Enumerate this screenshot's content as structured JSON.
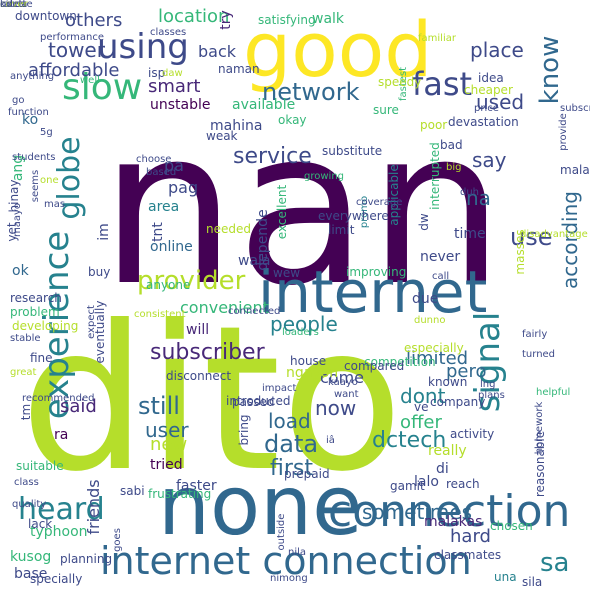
{
  "colors": {
    "background": "#ffffff",
    "palette": [
      "#440154",
      "#482878",
      "#3e4a89",
      "#31688e",
      "#26828e",
      "#1f9e89",
      "#35b779",
      "#6ece58",
      "#b5de2b",
      "#fde725"
    ]
  },
  "words": [
    {
      "text": "nan",
      "color": "#440154"
    },
    {
      "text": "dito",
      "color": "#b5de2b"
    },
    {
      "text": "good",
      "color": "#fde725"
    },
    {
      "text": "internet",
      "color": "#31688e"
    },
    {
      "text": "none",
      "color": "#31688e"
    },
    {
      "text": "internet connection",
      "color": "#31688e"
    },
    {
      "text": "connection",
      "color": "#31688e"
    },
    {
      "text": "using",
      "color": "#3e4a89"
    },
    {
      "text": "fast",
      "color": "#3e4a89"
    },
    {
      "text": "slow",
      "color": "#35b779"
    },
    {
      "text": "network",
      "color": "#31688e"
    },
    {
      "text": "experience",
      "color": "#26828e"
    },
    {
      "text": "provider",
      "color": "#b5de2b"
    },
    {
      "text": "signal",
      "color": "#26828e"
    },
    {
      "text": "subscriber",
      "color": "#482878"
    },
    {
      "text": "service",
      "color": "#3e4a89"
    },
    {
      "text": "globe",
      "color": "#26828e"
    },
    {
      "text": "heard",
      "color": "#26828e"
    },
    {
      "text": "sa",
      "color": "#26828e"
    },
    {
      "text": "use",
      "color": "#3e4a89"
    },
    {
      "text": "used",
      "color": "#3e4a89"
    },
    {
      "text": "know",
      "color": "#31688e"
    },
    {
      "text": "place",
      "color": "#3e4a89"
    },
    {
      "text": "tower",
      "color": "#3e4a89"
    },
    {
      "text": "others",
      "color": "#3e4a89"
    },
    {
      "text": "location",
      "color": "#35b779"
    },
    {
      "text": "affordable",
      "color": "#3e4a89"
    },
    {
      "text": "smart",
      "color": "#482878"
    },
    {
      "text": "now",
      "color": "#3e4a89"
    },
    {
      "text": "still",
      "color": "#31688e"
    },
    {
      "text": "data",
      "color": "#31688e"
    },
    {
      "text": "first",
      "color": "#31688e"
    },
    {
      "text": "dctech",
      "color": "#26828e"
    },
    {
      "text": "sometimes",
      "color": "#31688e"
    },
    {
      "text": "say",
      "color": "#3e4a89"
    },
    {
      "text": "na",
      "color": "#31688e"
    },
    {
      "text": "according",
      "color": "#31688e"
    },
    {
      "text": "people",
      "color": "#26828e"
    },
    {
      "text": "limited",
      "color": "#31688e"
    },
    {
      "text": "dont",
      "color": "#26828e"
    },
    {
      "text": "offer",
      "color": "#35b779"
    },
    {
      "text": "user",
      "color": "#31688e"
    },
    {
      "text": "new",
      "color": "#b5de2b"
    },
    {
      "text": "load",
      "color": "#31688e"
    },
    {
      "text": "said",
      "color": "#482878"
    },
    {
      "text": "hard",
      "color": "#3e4a89"
    },
    {
      "text": "pag",
      "color": "#3e4a89"
    },
    {
      "text": "back",
      "color": "#3e4a89"
    },
    {
      "text": "try",
      "color": "#482878"
    },
    {
      "text": "pa",
      "color": "#3e4a89"
    },
    {
      "text": "area",
      "color": "#26828e"
    },
    {
      "text": "depende",
      "color": "#3e4a89"
    },
    {
      "text": "online",
      "color": "#31688e"
    },
    {
      "text": "wala",
      "color": "#3e4a89"
    },
    {
      "text": "ko",
      "color": "#31688e"
    },
    {
      "text": "unstable",
      "color": "#440154"
    },
    {
      "text": "available",
      "color": "#35b779"
    },
    {
      "text": "ang",
      "color": "#35b779"
    },
    {
      "text": "yet",
      "color": "#3e4a89"
    },
    {
      "text": "hinay",
      "color": "#3e4a89"
    },
    {
      "text": "ok",
      "color": "#31688e"
    },
    {
      "text": "due",
      "color": "#3e4a89"
    },
    {
      "text": "convenient",
      "color": "#35b779"
    },
    {
      "text": "will",
      "color": "#482878"
    },
    {
      "text": "come",
      "color": "#3e4a89"
    },
    {
      "text": "pero",
      "color": "#31688e"
    },
    {
      "text": "tried",
      "color": "#440154"
    },
    {
      "text": "ra",
      "color": "#440154"
    },
    {
      "text": "really",
      "color": "#b5de2b"
    },
    {
      "text": "di",
      "color": "#3e4a89"
    },
    {
      "text": "lalo",
      "color": "#3e4a89"
    },
    {
      "text": "faster",
      "color": "#3e4a89"
    },
    {
      "text": "friends",
      "color": "#3e4a89"
    },
    {
      "text": "typhoon",
      "color": "#35b779"
    },
    {
      "text": "kusog",
      "color": "#35b779"
    },
    {
      "text": "malakas",
      "color": "#482878"
    },
    {
      "text": "base",
      "color": "#3e4a89"
    },
    {
      "text": "una",
      "color": "#26828e"
    },
    {
      "text": "never",
      "color": "#3e4a89"
    },
    {
      "text": "time",
      "color": "#3e4a89"
    },
    {
      "text": "bad",
      "color": "#3e4a89"
    },
    {
      "text": "malapit",
      "color": "#3e4a89"
    },
    {
      "text": "tnt",
      "color": "#3e4a89"
    },
    {
      "text": "im",
      "color": "#3e4a89"
    },
    {
      "text": "dw",
      "color": "#3e4a89"
    },
    {
      "text": "promo",
      "color": "#26828e"
    },
    {
      "text": "applicable",
      "color": "#26828e"
    },
    {
      "text": "mahina",
      "color": "#3e4a89"
    },
    {
      "text": "walk",
      "color": "#35b779"
    },
    {
      "text": "satisfying",
      "color": "#35b779"
    },
    {
      "text": "idea",
      "color": "#3e4a89"
    },
    {
      "text": "familiar",
      "color": "#b5de2b"
    },
    {
      "text": "cheaper",
      "color": "#b5de2b"
    },
    {
      "text": "price",
      "color": "#3e4a89"
    },
    {
      "text": "devastation",
      "color": "#3e4a89"
    },
    {
      "text": "subscribe",
      "color": "#3e4a89"
    },
    {
      "text": "provide",
      "color": "#3e4a89"
    },
    {
      "text": "poor",
      "color": "#b5de2b"
    },
    {
      "text": "sure",
      "color": "#35b779"
    },
    {
      "text": "fastest",
      "color": "#35b779"
    },
    {
      "text": "speedy",
      "color": "#b5de2b"
    },
    {
      "text": "okay",
      "color": "#35b779"
    },
    {
      "text": "weak",
      "color": "#3e4a89"
    },
    {
      "text": "substitute",
      "color": "#3e4a89"
    },
    {
      "text": "growing",
      "color": "#35b779"
    },
    {
      "text": "isp",
      "color": "#3e4a89"
    },
    {
      "text": "naman",
      "color": "#3e4a89"
    },
    {
      "text": "daw",
      "color": "#b5de2b"
    },
    {
      "text": "well",
      "color": "#35b779"
    },
    {
      "text": "classes",
      "color": "#3e4a89"
    },
    {
      "text": "performance",
      "color": "#3e4a89"
    },
    {
      "text": "downtown",
      "color": "#3e4a89"
    },
    {
      "text": "anything",
      "color": "#3e4a89"
    },
    {
      "text": "go",
      "color": "#3e4a89"
    },
    {
      "text": "function",
      "color": "#3e4a89"
    },
    {
      "text": "5g",
      "color": "#3e4a89"
    },
    {
      "text": "students",
      "color": "#3e4a89"
    },
    {
      "text": "one",
      "color": "#b5de2b"
    },
    {
      "text": "mas",
      "color": "#3e4a89"
    },
    {
      "text": "maayo",
      "color": "#3e4a89"
    },
    {
      "text": "choose",
      "color": "#3e4a89"
    },
    {
      "text": "based",
      "color": "#3e4a89"
    },
    {
      "text": "seems",
      "color": "#3e4a89"
    },
    {
      "text": "big",
      "color": "#b5de2b"
    },
    {
      "text": "duh",
      "color": "#3e4a89"
    },
    {
      "text": "interrupted",
      "color": "#35b779"
    },
    {
      "text": "masses",
      "color": "#b5de2b"
    },
    {
      "text": "coverage",
      "color": "#3e4a89"
    },
    {
      "text": "excellent",
      "color": "#35b779"
    },
    {
      "text": "everywhere",
      "color": "#3e4a89"
    },
    {
      "text": "limit",
      "color": "#3e4a89"
    },
    {
      "text": "disadvantage",
      "color": "#b5de2b"
    },
    {
      "text": "needed",
      "color": "#b5de2b"
    },
    {
      "text": "call",
      "color": "#3e4a89"
    },
    {
      "text": "buy",
      "color": "#3e4a89"
    },
    {
      "text": "anyone",
      "color": "#35b779"
    },
    {
      "text": "wew",
      "color": "#3e4a89"
    },
    {
      "text": "improving",
      "color": "#35b779"
    },
    {
      "text": "research",
      "color": "#3e4a89"
    },
    {
      "text": "problem",
      "color": "#35b779"
    },
    {
      "text": "developing",
      "color": "#b5de2b"
    },
    {
      "text": "stable",
      "color": "#3e4a89"
    },
    {
      "text": "fine",
      "color": "#3e4a89"
    },
    {
      "text": "great",
      "color": "#b5de2b"
    },
    {
      "text": "consistent",
      "color": "#b5de2b"
    },
    {
      "text": "connected",
      "color": "#3e4a89"
    },
    {
      "text": "expect",
      "color": "#3e4a89"
    },
    {
      "text": "eventually",
      "color": "#3e4a89"
    },
    {
      "text": "loaders",
      "color": "#35b779"
    },
    {
      "text": "dunno",
      "color": "#b5de2b"
    },
    {
      "text": "competition",
      "color": "#35b779"
    },
    {
      "text": "known",
      "color": "#3e4a89"
    },
    {
      "text": "especially",
      "color": "#b5de2b"
    },
    {
      "text": "turned",
      "color": "#3e4a89"
    },
    {
      "text": "compared",
      "color": "#3e4a89"
    },
    {
      "text": "house",
      "color": "#3e4a89"
    },
    {
      "text": "lng",
      "color": "#3e4a89"
    },
    {
      "text": "fairly",
      "color": "#3e4a89"
    },
    {
      "text": "disconnect",
      "color": "#3e4a89"
    },
    {
      "text": "company",
      "color": "#3e4a89"
    },
    {
      "text": "plans",
      "color": "#3e4a89"
    },
    {
      "text": "kaayo",
      "color": "#3e4a89"
    },
    {
      "text": "want",
      "color": "#3e4a89"
    },
    {
      "text": "tm",
      "color": "#3e4a89"
    },
    {
      "text": "recommended",
      "color": "#3e4a89"
    },
    {
      "text": "introduced",
      "color": "#3e4a89"
    },
    {
      "text": "passed",
      "color": "#3e4a89"
    },
    {
      "text": "ngayon",
      "color": "#b5de2b"
    },
    {
      "text": "impact",
      "color": "#3e4a89"
    },
    {
      "text": "ve",
      "color": "#3e4a89"
    },
    {
      "text": "helpful",
      "color": "#35b779"
    },
    {
      "text": "homework",
      "color": "#3e4a89"
    },
    {
      "text": "activity",
      "color": "#3e4a89"
    },
    {
      "text": "sabi",
      "color": "#3e4a89"
    },
    {
      "text": "class",
      "color": "#3e4a89"
    },
    {
      "text": "suitable",
      "color": "#35b779"
    },
    {
      "text": "quality",
      "color": "#3e4a89"
    },
    {
      "text": "bring",
      "color": "#3e4a89"
    },
    {
      "text": "iâ",
      "color": "#3e4a89"
    },
    {
      "text": "prepaid",
      "color": "#3e4a89"
    },
    {
      "text": "reach",
      "color": "#3e4a89"
    },
    {
      "text": "reasonable",
      "color": "#3e4a89"
    },
    {
      "text": "frustrating",
      "color": "#35b779"
    },
    {
      "text": "lack",
      "color": "#3e4a89"
    },
    {
      "text": "gamit",
      "color": "#3e4a89"
    },
    {
      "text": "chosen",
      "color": "#35b779"
    },
    {
      "text": "goes",
      "color": "#3e4a89"
    },
    {
      "text": "nila",
      "color": "#3e4a89"
    },
    {
      "text": "outside",
      "color": "#3e4a89"
    },
    {
      "text": "classmates",
      "color": "#3e4a89"
    },
    {
      "text": "planning",
      "color": "#3e4a89"
    },
    {
      "text": "specially",
      "color": "#3e4a89"
    },
    {
      "text": "nimong",
      "color": "#3e4a89"
    },
    {
      "text": "sila",
      "color": "#3e4a89"
    },
    {
      "text": "kinda",
      "color": "#3e4a89"
    },
    {
      "text": "rates",
      "color": "#3e4a89"
    },
    {
      "text": "cover",
      "color": "#b5de2b"
    },
    {
      "text": "odette",
      "color": "#3e4a89"
    }
  ]
}
